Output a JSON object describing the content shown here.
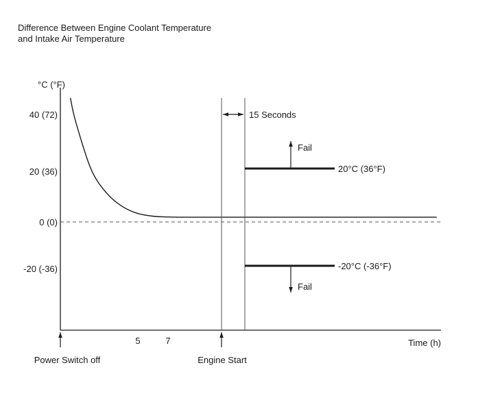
{
  "title_lines": [
    "Difference Between Engine Coolant Temperature",
    "and Intake Air Temperature"
  ],
  "chart_data": {
    "type": "line",
    "title": "Difference Between Engine Coolant Temperature and Intake Air Temperature",
    "ylabel": "°C (°F)",
    "xlabel": "Time (h)",
    "y_ticks": [
      {
        "value": 40,
        "label": "40 (72)"
      },
      {
        "value": 20,
        "label": "20 (36)"
      },
      {
        "value": 0,
        "label": "0 (0)"
      },
      {
        "value": -20,
        "label": "-20 (-36)"
      }
    ],
    "x_ticks": [
      {
        "value": 5,
        "label": "5"
      },
      {
        "value": 7,
        "label": "7"
      }
    ],
    "grid": false,
    "reference_line": {
      "y": 0,
      "style": "dashed"
    },
    "curve": {
      "points": [
        [
          0.65,
          50
        ],
        [
          1,
          38
        ],
        [
          2,
          20
        ],
        [
          3,
          11
        ],
        [
          4,
          6
        ],
        [
          5,
          3.3
        ],
        [
          6,
          2.2
        ],
        [
          7,
          1.9
        ],
        [
          8,
          1.8
        ],
        [
          10.5,
          1.8
        ],
        [
          16,
          1.8
        ],
        [
          24.5,
          1.8
        ]
      ]
    },
    "events": [
      {
        "label": "Power Switch off",
        "x": 0,
        "marker": "arrow-up"
      },
      {
        "label": "Engine Start",
        "x": 10.5,
        "marker": "arrow-up"
      }
    ],
    "interval_annotation": {
      "label": "15 Seconds",
      "x_start": 10.5,
      "x_end": 12
    },
    "thresholds": [
      {
        "value": 20,
        "label": "20°C (36°F)",
        "direction": "up",
        "direction_label": "Fail"
      },
      {
        "value": -20,
        "label": "-20°C (-36°F)",
        "direction": "down",
        "direction_label": "Fail"
      }
    ]
  }
}
